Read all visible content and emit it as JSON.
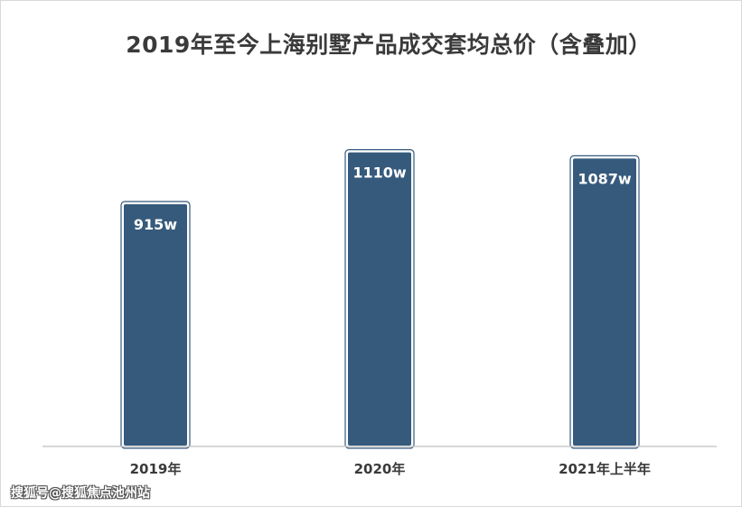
{
  "chart_data": {
    "type": "bar",
    "title": "2019年至今上海别墅产品成交套均总价（含叠加）",
    "categories": [
      "2019年",
      "2020年",
      "2021年上半年"
    ],
    "values": [
      915,
      1110,
      1087
    ],
    "data_labels": [
      "915w",
      "1110w",
      "1087w"
    ],
    "ylim": [
      0,
      1170
    ],
    "grid": false,
    "bar_color": "#365a7c",
    "axis_color": "#c8c8c8"
  },
  "watermark": "搜狐号@搜狐焦点池州站"
}
